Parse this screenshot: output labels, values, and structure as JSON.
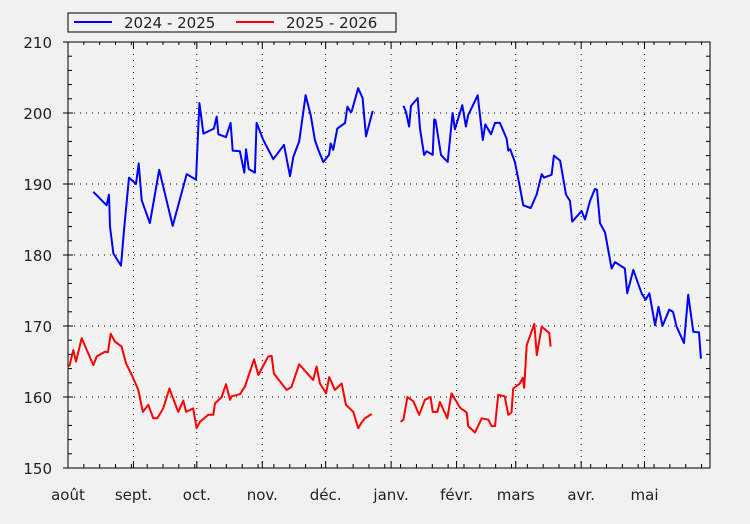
{
  "chart_data": {
    "type": "line",
    "title": "",
    "xlabel": "",
    "ylabel": "",
    "x_unit": "days since 1 August",
    "xlim": [
      0,
      304
    ],
    "ylim": [
      150,
      210
    ],
    "yticks": [
      150,
      160,
      170,
      180,
      190,
      200,
      210
    ],
    "grid": true,
    "legend_placement": "top-left",
    "month_ticks": [
      {
        "label": "août",
        "day": 0
      },
      {
        "label": "sept.",
        "day": 31
      },
      {
        "label": "oct.",
        "day": 61
      },
      {
        "label": "nov.",
        "day": 92
      },
      {
        "label": "déc.",
        "day": 122
      },
      {
        "label": "janv.",
        "day": 153
      },
      {
        "label": "févr.",
        "day": 184
      },
      {
        "label": "mars",
        "day": 212
      },
      {
        "label": "avr.",
        "day": 243
      },
      {
        "label": "mai",
        "day": 273
      }
    ],
    "series": [
      {
        "name": "2024 - 2025",
        "color": "#0000ff",
        "segments": [
          [
            [
              12,
              188.9
            ],
            [
              18.3,
              187.0
            ],
            [
              19.4,
              188.5
            ],
            [
              19.9,
              184.0
            ],
            [
              21.5,
              180.2
            ],
            [
              25.1,
              178.5
            ],
            [
              26.5,
              183.5
            ],
            [
              28.9,
              190.9
            ],
            [
              32.2,
              190.0
            ],
            [
              33.5,
              192.9
            ],
            [
              34.9,
              187.7
            ],
            [
              38.8,
              184.5
            ],
            [
              43.2,
              192.0
            ],
            [
              49.6,
              184.1
            ],
            [
              56.2,
              191.4
            ],
            [
              60.6,
              190.6
            ],
            [
              62.2,
              201.4
            ],
            [
              64.1,
              197.1
            ],
            [
              69.1,
              197.8
            ],
            [
              70.4,
              199.5
            ],
            [
              71.2,
              197.0
            ],
            [
              74.8,
              196.6
            ],
            [
              77.0,
              198.6
            ],
            [
              78.0,
              194.7
            ],
            [
              81.4,
              194.6
            ],
            [
              83.5,
              191.6
            ],
            [
              84.3,
              194.9
            ],
            [
              85.6,
              192.1
            ],
            [
              88.5,
              191.6
            ],
            [
              89.3,
              198.6
            ],
            [
              92.5,
              196.2
            ],
            [
              97.2,
              193.5
            ],
            [
              102.3,
              195.5
            ],
            [
              105.1,
              191.1
            ],
            [
              106.7,
              193.8
            ],
            [
              109.5,
              196.0
            ],
            [
              112.5,
              202.5
            ],
            [
              114.9,
              199.7
            ],
            [
              116.9,
              196.2
            ],
            [
              118.5,
              194.8
            ],
            [
              120.9,
              193.1
            ],
            [
              123.6,
              194.1
            ],
            [
              124.4,
              195.7
            ],
            [
              125.6,
              194.8
            ],
            [
              127.5,
              197.8
            ],
            [
              131.2,
              198.6
            ],
            [
              132.3,
              200.9
            ],
            [
              133.9,
              200.1
            ],
            [
              134.3,
              200.2
            ],
            [
              137.4,
              203.5
            ],
            [
              139.5,
              202.1
            ],
            [
              141.1,
              196.7
            ],
            [
              144.3,
              200.3
            ]
          ],
          [
            [
              158.8,
              201.0
            ],
            [
              160.0,
              200.2
            ],
            [
              161.5,
              198.1
            ],
            [
              162.4,
              201.0
            ],
            [
              165.6,
              202.1
            ],
            [
              166.7,
              197.8
            ],
            [
              168.6,
              194.1
            ],
            [
              169.8,
              194.6
            ],
            [
              172.7,
              194.1
            ],
            [
              173.4,
              199.1
            ],
            [
              174.0,
              199.0
            ],
            [
              176.6,
              194.1
            ],
            [
              179.8,
              193.1
            ],
            [
              182.1,
              200.0
            ],
            [
              183.2,
              197.7
            ],
            [
              186.7,
              201.1
            ],
            [
              188.4,
              198.1
            ],
            [
              189.5,
              199.7
            ],
            [
              194.0,
              202.5
            ],
            [
              196.4,
              196.2
            ],
            [
              197.6,
              198.4
            ],
            [
              200.3,
              197.0
            ],
            [
              202.2,
              198.6
            ],
            [
              204.5,
              198.6
            ],
            [
              207.7,
              196.4
            ],
            [
              208.5,
              194.7
            ],
            [
              209.4,
              194.9
            ],
            [
              211.6,
              193.1
            ],
            [
              213.7,
              190.0
            ],
            [
              215.6,
              187.0
            ],
            [
              219.1,
              186.6
            ],
            [
              221.9,
              188.5
            ],
            [
              224.3,
              191.4
            ],
            [
              225.4,
              190.9
            ],
            [
              229.0,
              191.3
            ],
            [
              230.1,
              194.0
            ],
            [
              233.0,
              193.3
            ],
            [
              235.8,
              188.5
            ],
            [
              237.7,
              187.6
            ],
            [
              238.8,
              184.7
            ],
            [
              243.2,
              186.2
            ],
            [
              244.8,
              185.0
            ],
            [
              247.2,
              187.6
            ],
            [
              249.5,
              189.3
            ],
            [
              250.5,
              189.2
            ],
            [
              251.9,
              184.5
            ],
            [
              254.3,
              183.2
            ],
            [
              257.4,
              178.1
            ],
            [
              259.0,
              179.0
            ],
            [
              263.7,
              178.1
            ],
            [
              264.8,
              174.6
            ],
            [
              267.7,
              177.9
            ],
            [
              271.6,
              174.6
            ],
            [
              273.5,
              173.7
            ],
            [
              275.3,
              174.6
            ],
            [
              278.0,
              170.1
            ],
            [
              279.6,
              172.7
            ],
            [
              281.5,
              170.0
            ],
            [
              284.7,
              172.3
            ],
            [
              286.5,
              172.0
            ],
            [
              288.2,
              169.9
            ],
            [
              291.7,
              167.6
            ],
            [
              293.7,
              174.4
            ],
            [
              296.1,
              169.2
            ],
            [
              298.8,
              169.1
            ],
            [
              299.7,
              165.4
            ]
          ]
        ]
      },
      {
        "name": "2025 - 2026",
        "color": "#ff0000",
        "segments": [
          [
            [
              0.6,
              164.3
            ],
            [
              2.5,
              166.6
            ],
            [
              3.8,
              165.0
            ],
            [
              6.5,
              168.3
            ],
            [
              12.0,
              164.5
            ],
            [
              13.6,
              165.7
            ],
            [
              17.5,
              166.4
            ],
            [
              18.9,
              166.3
            ],
            [
              20.2,
              168.9
            ],
            [
              22.2,
              167.8
            ],
            [
              25.4,
              167.1
            ],
            [
              27.5,
              164.7
            ],
            [
              30.2,
              163.1
            ],
            [
              33.3,
              161.0
            ],
            [
              35.4,
              157.9
            ],
            [
              38.0,
              158.9
            ],
            [
              40.4,
              157.0
            ],
            [
              42.3,
              157.0
            ],
            [
              45.1,
              158.4
            ],
            [
              48.0,
              161.2
            ],
            [
              52.2,
              157.9
            ],
            [
              54.6,
              159.5
            ],
            [
              55.9,
              157.9
            ],
            [
              59.3,
              158.4
            ],
            [
              60.9,
              155.6
            ],
            [
              62.5,
              156.5
            ],
            [
              66.4,
              157.5
            ],
            [
              68.8,
              157.5
            ],
            [
              69.6,
              159.1
            ],
            [
              72.8,
              160.0
            ],
            [
              74.8,
              161.8
            ],
            [
              76.7,
              159.6
            ],
            [
              77.5,
              160.1
            ],
            [
              81.4,
              160.4
            ],
            [
              83.8,
              161.5
            ],
            [
              88.1,
              165.3
            ],
            [
              90.1,
              163.1
            ],
            [
              94.8,
              165.7
            ],
            [
              96.4,
              165.8
            ],
            [
              97.5,
              163.3
            ],
            [
              103.5,
              161.0
            ],
            [
              105.8,
              161.4
            ],
            [
              109.5,
              164.6
            ],
            [
              116.1,
              162.4
            ],
            [
              117.7,
              164.3
            ],
            [
              119.3,
              161.9
            ],
            [
              122.2,
              160.5
            ],
            [
              123.7,
              162.8
            ],
            [
              126.4,
              161.0
            ],
            [
              129.6,
              161.9
            ],
            [
              131.6,
              158.9
            ],
            [
              135.1,
              157.9
            ],
            [
              137.4,
              155.6
            ],
            [
              139.0,
              156.4
            ],
            [
              140.6,
              157.0
            ],
            [
              143.8,
              157.6
            ]
          ],
          [
            [
              157.5,
              156.5
            ],
            [
              158.8,
              156.8
            ],
            [
              160.7,
              160.0
            ],
            [
              163.5,
              159.4
            ],
            [
              166.3,
              157.5
            ],
            [
              169.0,
              159.6
            ],
            [
              171.7,
              160.0
            ],
            [
              172.7,
              157.9
            ],
            [
              174.9,
              157.9
            ],
            [
              176.1,
              159.3
            ],
            [
              179.6,
              157.0
            ],
            [
              181.6,
              160.5
            ],
            [
              185.6,
              158.5
            ],
            [
              188.8,
              157.8
            ],
            [
              189.5,
              155.9
            ],
            [
              192.7,
              155.0
            ],
            [
              195.9,
              157.0
            ],
            [
              199.0,
              156.8
            ],
            [
              200.6,
              155.9
            ],
            [
              202.2,
              155.9
            ],
            [
              203.7,
              160.3
            ],
            [
              206.8,
              160.1
            ],
            [
              208.5,
              157.5
            ],
            [
              210.0,
              157.8
            ],
            [
              210.8,
              161.2
            ],
            [
              214.0,
              161.9
            ],
            [
              215.3,
              162.7
            ],
            [
              216.0,
              161.3
            ],
            [
              217.2,
              167.3
            ],
            [
              220.8,
              170.3
            ],
            [
              222.0,
              165.9
            ],
            [
              224.3,
              169.9
            ],
            [
              227.9,
              169.0
            ],
            [
              228.5,
              167.1
            ]
          ]
        ]
      }
    ]
  }
}
